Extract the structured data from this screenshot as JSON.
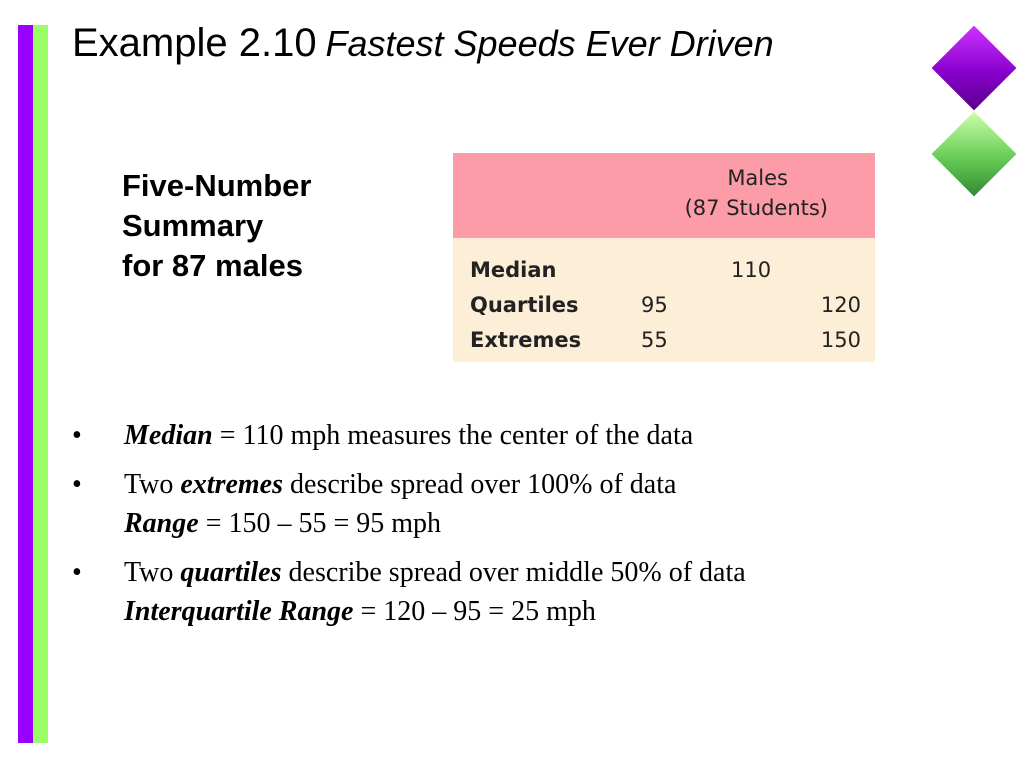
{
  "slide": {
    "title_main": "Example 2.10",
    "title_sub": "Fastest Speeds Ever Driven",
    "summary_label": [
      "Five-Number",
      "Summary",
      "for 87 males"
    ],
    "table": {
      "header_line1": "Males",
      "header_line2": "(87 Students)",
      "rows": [
        {
          "label": "Median",
          "mid": "110"
        },
        {
          "label": "Quartiles",
          "lo": "95",
          "hi": "120"
        },
        {
          "label": "Extremes",
          "lo": "55",
          "hi": "150"
        }
      ]
    },
    "bullets": [
      {
        "bold": "Median",
        "text": " = 110 mph measures the center of the data"
      },
      {
        "pre": "Two ",
        "bold": "extremes",
        "text": " describe spread over 100% of data",
        "line2_bold": "Range",
        "line2_text": " = 150 – 55 = 95 mph"
      },
      {
        "pre": "Two ",
        "bold": "quartiles",
        "text": " describe spread over middle 50% of data",
        "line2_bold": "Interquartile Range",
        "line2_text": " = 120 – 95 = 25 mph"
      }
    ],
    "bullet_char": "•",
    "colors": {
      "bar_purple": "#9900ff",
      "bar_green": "#99ff66",
      "table_header": "#fc9ca8",
      "table_body": "#fdeed8"
    }
  }
}
